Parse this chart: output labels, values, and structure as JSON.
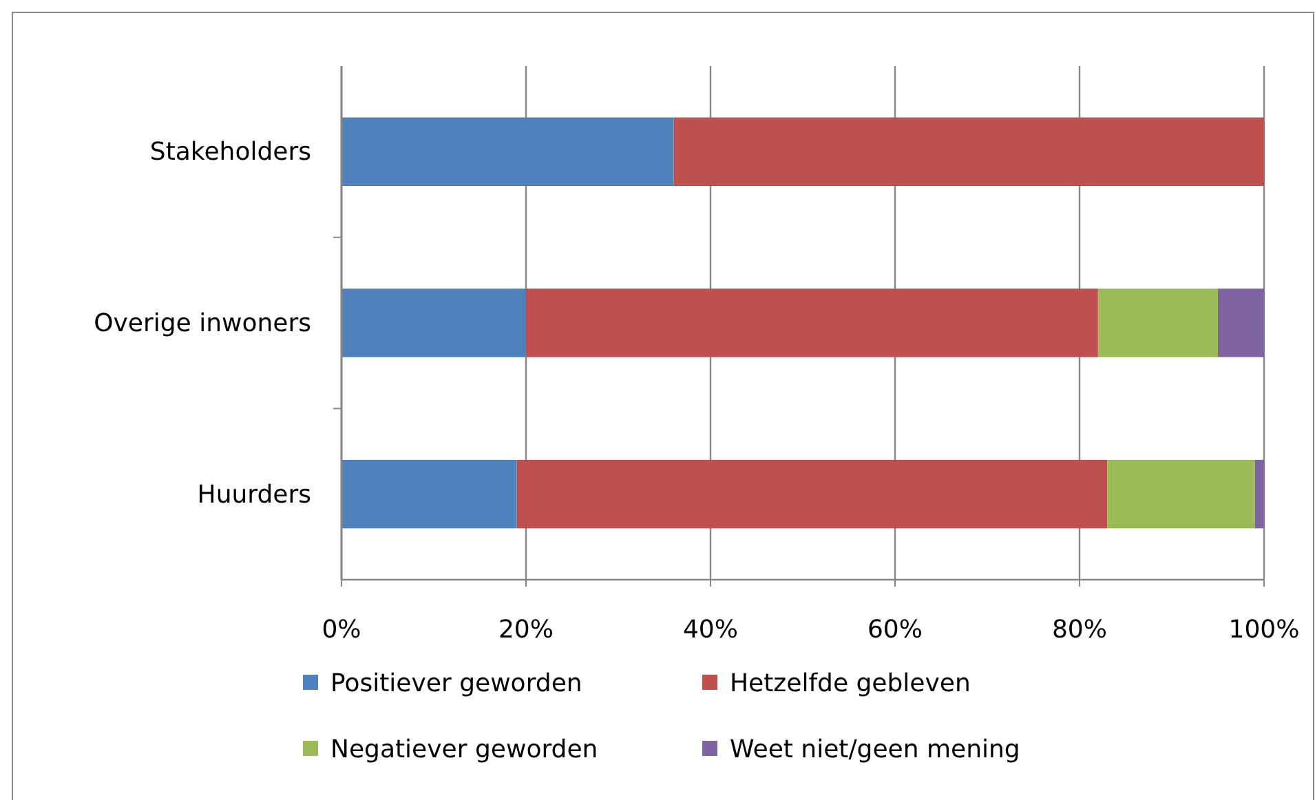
{
  "chart_data": {
    "type": "bar",
    "orientation": "horizontal",
    "stacked": true,
    "categories": [
      "Stakeholders",
      "Overige inwoners",
      "Huurders"
    ],
    "series": [
      {
        "name": "Positiever geworden",
        "color": "#4f81bd",
        "values": [
          36,
          20,
          19
        ]
      },
      {
        "name": "Hetzelfde gebleven",
        "color": "#c0504d",
        "values": [
          64,
          62,
          64
        ]
      },
      {
        "name": "Negatiever geworden",
        "color": "#9bbb59",
        "values": [
          0,
          13,
          16
        ]
      },
      {
        "name": "Weet niet/geen mening",
        "color": "#8064a2",
        "values": [
          0,
          5,
          1
        ]
      }
    ],
    "xlim": [
      0,
      100
    ],
    "xticks": [
      {
        "value": 0,
        "label": "0%"
      },
      {
        "value": 20,
        "label": "20%"
      },
      {
        "value": 40,
        "label": "40%"
      },
      {
        "value": 60,
        "label": "60%"
      },
      {
        "value": 80,
        "label": "80%"
      },
      {
        "value": 100,
        "label": "100%"
      }
    ],
    "grid": "x",
    "legend": "bottom"
  }
}
